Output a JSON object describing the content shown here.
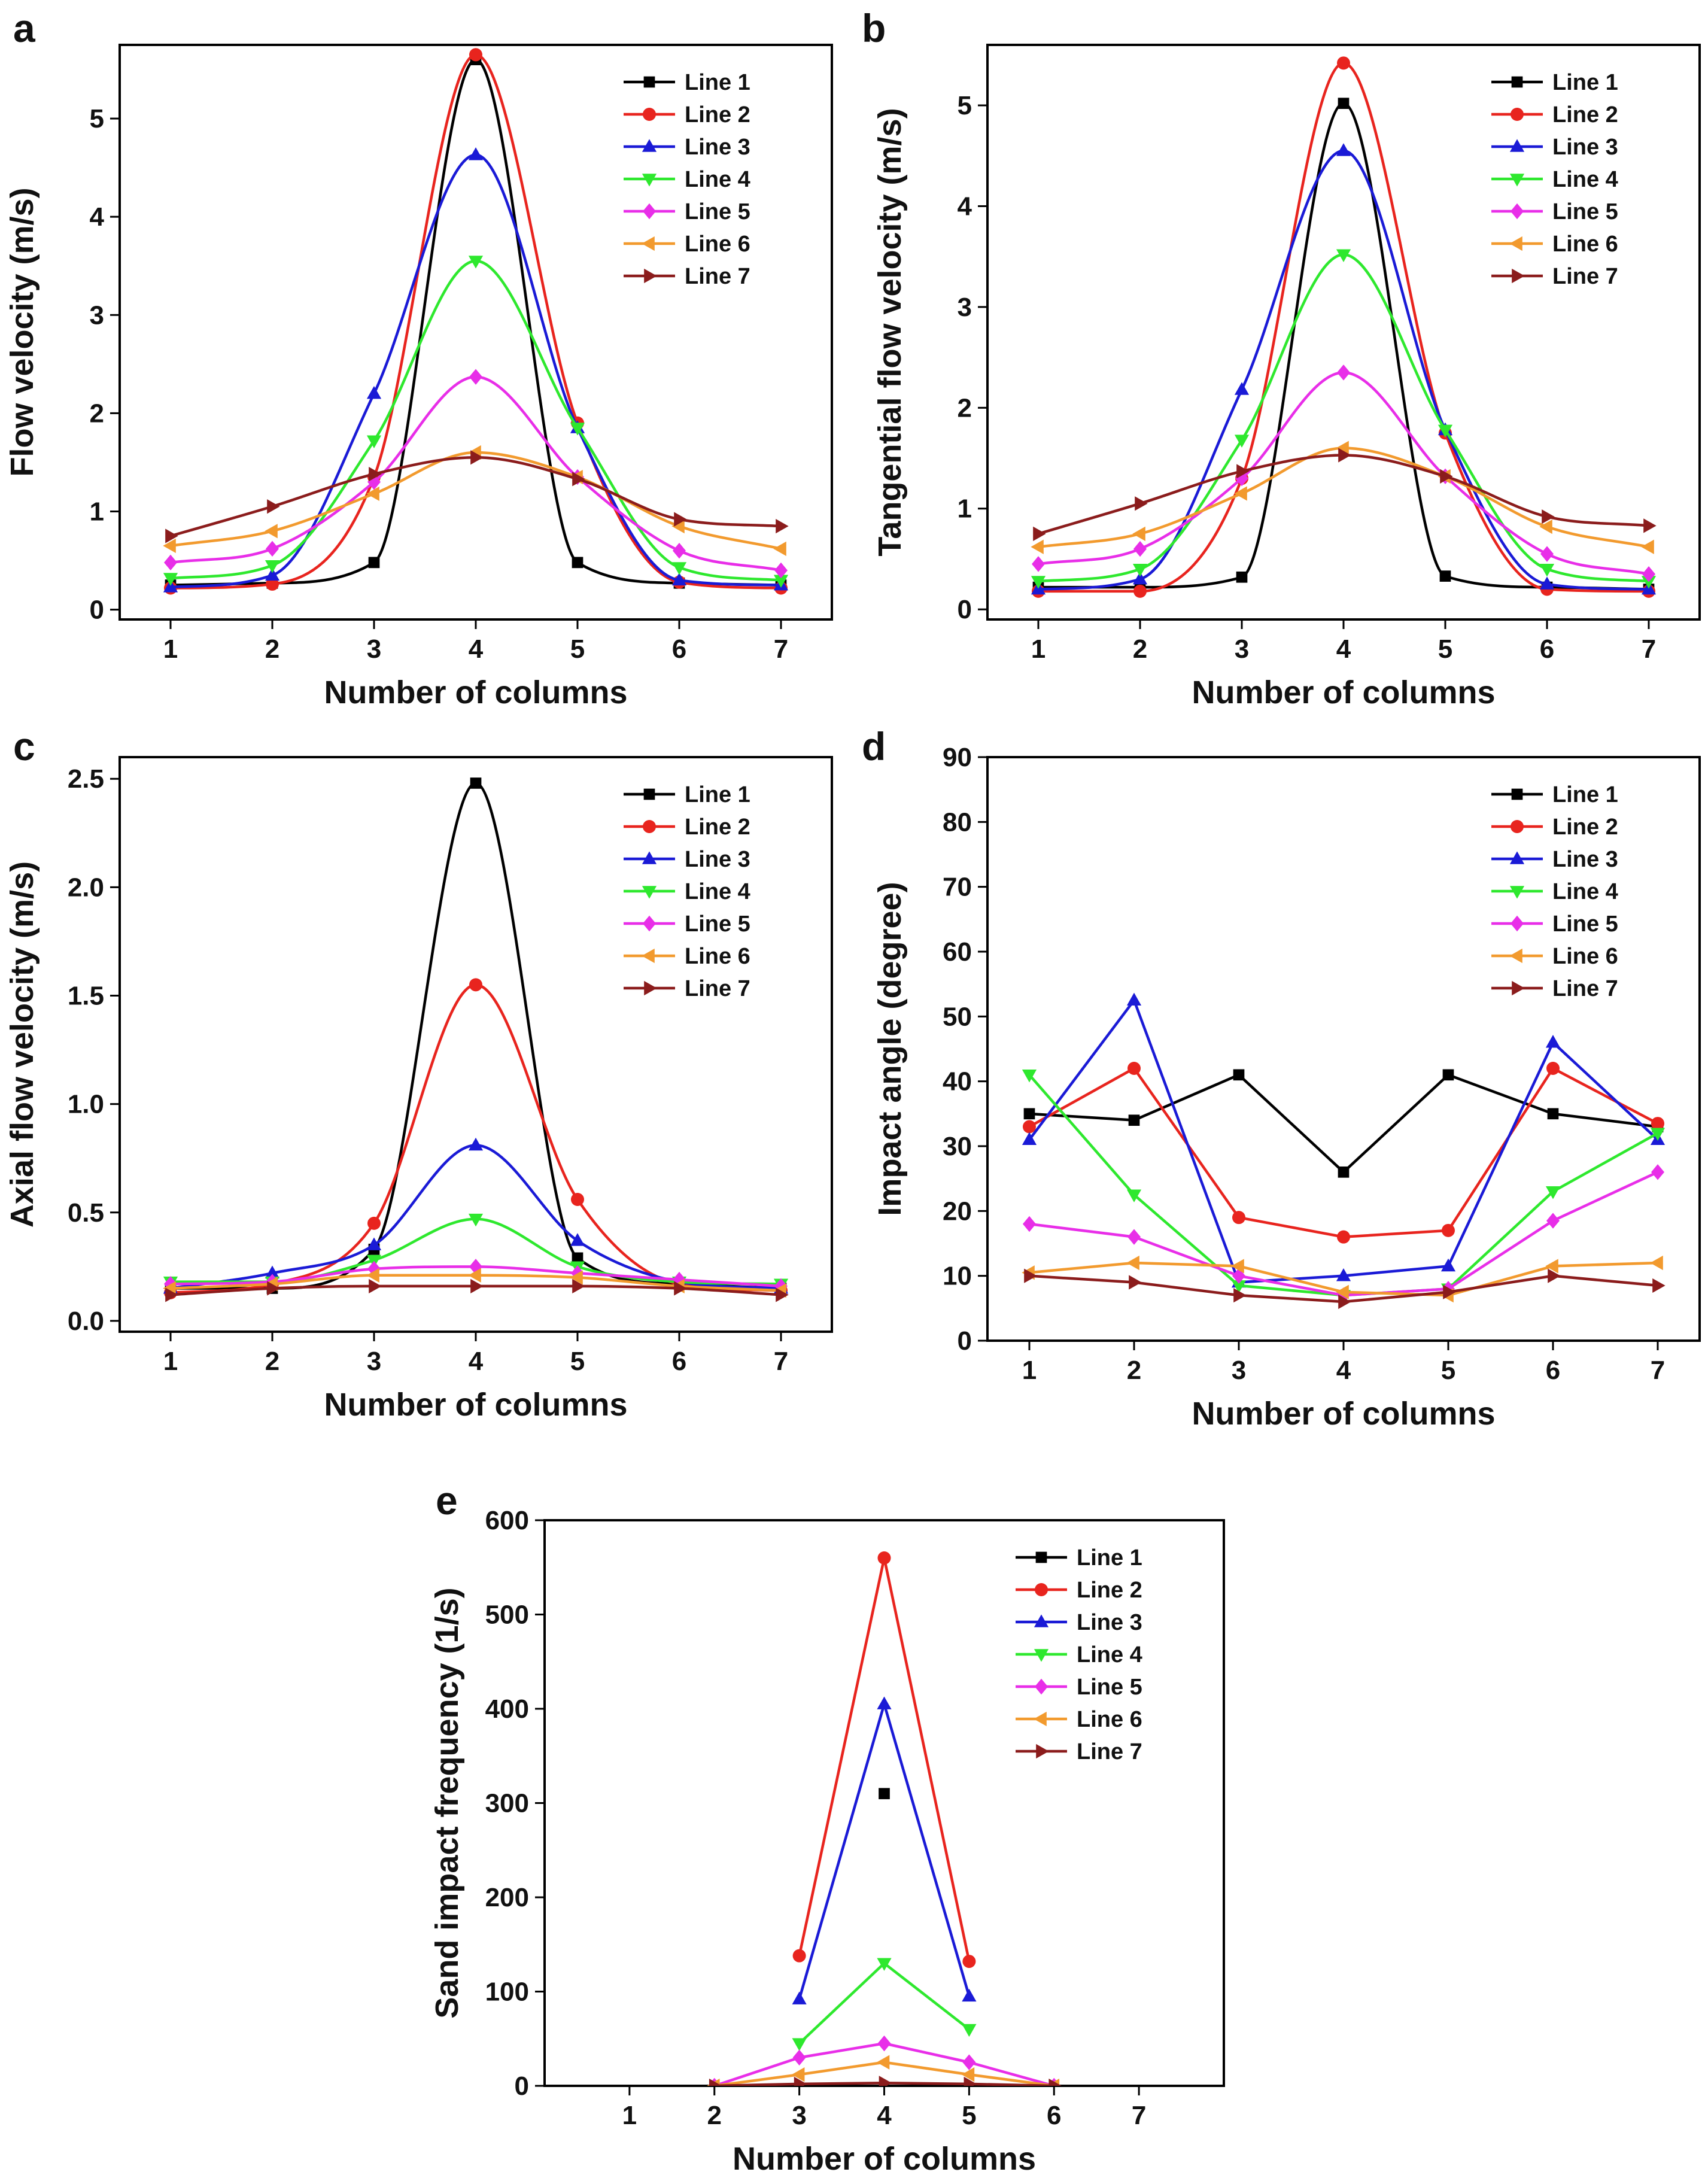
{
  "figure": {
    "panel_letters": [
      "a",
      "b",
      "c",
      "d",
      "e"
    ]
  },
  "chart_data": [
    {
      "type": "line",
      "panel": "a",
      "smooth": true,
      "title": "",
      "xlabel": "Number of columns",
      "ylabel": "Flow velocity (m/s)",
      "x": [
        1,
        2,
        3,
        4,
        5,
        6,
        7
      ],
      "xticks": [
        "1",
        "2",
        "3",
        "4",
        "5",
        "6",
        "7"
      ],
      "xlim": [
        0.5,
        7.5
      ],
      "ylim": [
        -0.1,
        5.75
      ],
      "yticks": [
        0,
        1,
        2,
        3,
        4,
        5
      ],
      "legend": "top-right",
      "series": [
        {
          "name": "Line 1",
          "color": "#000000",
          "marker": "square",
          "values": [
            0.25,
            0.27,
            0.48,
            5.6,
            0.48,
            0.27,
            0.25
          ]
        },
        {
          "name": "Line 2",
          "color": "#e8241e",
          "marker": "circle",
          "values": [
            0.22,
            0.26,
            1.35,
            5.65,
            1.9,
            0.28,
            0.22
          ]
        },
        {
          "name": "Line 3",
          "color": "#1a1ad6",
          "marker": "triangle-up",
          "values": [
            0.23,
            0.35,
            2.2,
            4.63,
            1.85,
            0.3,
            0.25
          ]
        },
        {
          "name": "Line 4",
          "color": "#2ee82e",
          "marker": "triangle-down",
          "values": [
            0.32,
            0.45,
            1.72,
            3.55,
            1.85,
            0.43,
            0.3
          ]
        },
        {
          "name": "Line 5",
          "color": "#e82ee8",
          "marker": "diamond",
          "values": [
            0.48,
            0.62,
            1.3,
            2.37,
            1.35,
            0.6,
            0.4
          ]
        },
        {
          "name": "Line 6",
          "color": "#f29a2e",
          "marker": "triangle-left",
          "values": [
            0.65,
            0.8,
            1.18,
            1.6,
            1.35,
            0.85,
            0.62
          ]
        },
        {
          "name": "Line 7",
          "color": "#8b1c1c",
          "marker": "triangle-right",
          "values": [
            0.75,
            1.05,
            1.38,
            1.55,
            1.33,
            0.92,
            0.85
          ]
        }
      ]
    },
    {
      "type": "line",
      "panel": "b",
      "smooth": true,
      "title": "",
      "xlabel": "Number of columns",
      "ylabel": "Tangential flow velocity (m/s)",
      "x": [
        1,
        2,
        3,
        4,
        5,
        6,
        7
      ],
      "xticks": [
        "1",
        "2",
        "3",
        "4",
        "5",
        "6",
        "7"
      ],
      "xlim": [
        0.5,
        7.5
      ],
      "ylim": [
        -0.1,
        5.6
      ],
      "yticks": [
        0,
        1,
        2,
        3,
        4,
        5
      ],
      "legend": "top-right",
      "series": [
        {
          "name": "Line 1",
          "color": "#000000",
          "marker": "square",
          "values": [
            0.22,
            0.22,
            0.32,
            5.02,
            0.33,
            0.22,
            0.2
          ]
        },
        {
          "name": "Line 2",
          "color": "#e8241e",
          "marker": "circle",
          "values": [
            0.18,
            0.18,
            1.3,
            5.42,
            1.75,
            0.2,
            0.18
          ]
        },
        {
          "name": "Line 3",
          "color": "#1a1ad6",
          "marker": "triangle-up",
          "values": [
            0.2,
            0.3,
            2.18,
            4.55,
            1.78,
            0.25,
            0.2
          ]
        },
        {
          "name": "Line 4",
          "color": "#2ee82e",
          "marker": "triangle-down",
          "values": [
            0.28,
            0.4,
            1.68,
            3.52,
            1.78,
            0.4,
            0.28
          ]
        },
        {
          "name": "Line 5",
          "color": "#e82ee8",
          "marker": "diamond",
          "values": [
            0.45,
            0.6,
            1.3,
            2.35,
            1.32,
            0.55,
            0.35
          ]
        },
        {
          "name": "Line 6",
          "color": "#f29a2e",
          "marker": "triangle-left",
          "values": [
            0.62,
            0.75,
            1.15,
            1.6,
            1.32,
            0.82,
            0.62
          ]
        },
        {
          "name": "Line 7",
          "color": "#8b1c1c",
          "marker": "triangle-right",
          "values": [
            0.75,
            1.05,
            1.37,
            1.53,
            1.32,
            0.92,
            0.83
          ]
        }
      ]
    },
    {
      "type": "line",
      "panel": "c",
      "smooth": true,
      "title": "",
      "xlabel": "Number of columns",
      "ylabel": "Axial flow velocity (m/s)",
      "x": [
        1,
        2,
        3,
        4,
        5,
        6,
        7
      ],
      "xticks": [
        "1",
        "2",
        "3",
        "4",
        "5",
        "6",
        "7"
      ],
      "xlim": [
        0.5,
        7.5
      ],
      "ylim": [
        -0.05,
        2.6
      ],
      "yticks": [
        0.0,
        0.5,
        1.0,
        1.5,
        2.0,
        2.5
      ],
      "ytick_labels": [
        "0.0",
        "0.5",
        "1.0",
        "1.5",
        "2.0",
        "2.5"
      ],
      "legend": "top-right",
      "series": [
        {
          "name": "Line 1",
          "color": "#000000",
          "marker": "square",
          "values": [
            0.15,
            0.15,
            0.33,
            2.48,
            0.29,
            0.17,
            0.15
          ]
        },
        {
          "name": "Line 2",
          "color": "#e8241e",
          "marker": "circle",
          "values": [
            0.13,
            0.17,
            0.45,
            1.55,
            0.56,
            0.17,
            0.14
          ]
        },
        {
          "name": "Line 3",
          "color": "#1a1ad6",
          "marker": "triangle-up",
          "values": [
            0.15,
            0.22,
            0.35,
            0.81,
            0.37,
            0.18,
            0.15
          ]
        },
        {
          "name": "Line 4",
          "color": "#2ee82e",
          "marker": "triangle-down",
          "values": [
            0.18,
            0.18,
            0.28,
            0.47,
            0.25,
            0.18,
            0.17
          ]
        },
        {
          "name": "Line 5",
          "color": "#e82ee8",
          "marker": "diamond",
          "values": [
            0.17,
            0.18,
            0.24,
            0.25,
            0.22,
            0.19,
            0.16
          ]
        },
        {
          "name": "Line 6",
          "color": "#f29a2e",
          "marker": "triangle-left",
          "values": [
            0.15,
            0.17,
            0.21,
            0.21,
            0.2,
            0.16,
            0.14
          ]
        },
        {
          "name": "Line 7",
          "color": "#8b1c1c",
          "marker": "triangle-right",
          "values": [
            0.12,
            0.15,
            0.16,
            0.16,
            0.16,
            0.15,
            0.12
          ]
        }
      ]
    },
    {
      "type": "line",
      "panel": "d",
      "smooth": false,
      "title": "",
      "xlabel": "Number of columns",
      "ylabel": "Impact angle (degree)",
      "x": [
        1,
        2,
        3,
        4,
        5,
        6,
        7
      ],
      "xticks": [
        "1",
        "2",
        "3",
        "4",
        "5",
        "6",
        "7"
      ],
      "xlim": [
        0.6,
        7.4
      ],
      "ylim": [
        0,
        90
      ],
      "yticks": [
        0,
        10,
        20,
        30,
        40,
        50,
        60,
        70,
        80,
        90
      ],
      "legend": "top-right",
      "series": [
        {
          "name": "Line 1",
          "color": "#000000",
          "marker": "square",
          "values": [
            35,
            34,
            41,
            26,
            41,
            35,
            33
          ]
        },
        {
          "name": "Line 2",
          "color": "#e8241e",
          "marker": "circle",
          "values": [
            33,
            42,
            19,
            16,
            17,
            42,
            33.5
          ]
        },
        {
          "name": "Line 3",
          "color": "#1a1ad6",
          "marker": "triangle-up",
          "values": [
            31,
            52.5,
            9,
            10,
            11.5,
            46,
            31
          ]
        },
        {
          "name": "Line 4",
          "color": "#2ee82e",
          "marker": "triangle-down",
          "values": [
            41,
            22.5,
            8.5,
            7,
            8,
            23,
            32
          ]
        },
        {
          "name": "Line 5",
          "color": "#e82ee8",
          "marker": "diamond",
          "values": [
            18,
            16,
            10,
            7,
            8,
            18.5,
            26
          ]
        },
        {
          "name": "Line 6",
          "color": "#f29a2e",
          "marker": "triangle-left",
          "values": [
            10.5,
            12,
            11.5,
            7.5,
            7,
            11.5,
            12
          ]
        },
        {
          "name": "Line 7",
          "color": "#8b1c1c",
          "marker": "triangle-right",
          "values": [
            10,
            9,
            7,
            6,
            7.5,
            10,
            8.5
          ]
        }
      ]
    },
    {
      "type": "line",
      "panel": "e",
      "smooth": false,
      "title": "",
      "xlabel": "Number of columns",
      "ylabel": "Sand impact frequency (1/s)",
      "x": [
        1,
        2,
        3,
        4,
        5,
        6,
        7
      ],
      "xticks": [
        "1",
        "2",
        "3",
        "4",
        "5",
        "6",
        "7"
      ],
      "xlim": [
        0.0,
        8.0
      ],
      "ylim": [
        0,
        600
      ],
      "yticks": [
        0,
        100,
        200,
        300,
        400,
        500,
        600
      ],
      "legend": "top-right",
      "series": [
        {
          "name": "Line 1",
          "color": "#000000",
          "marker": "square",
          "points": [
            [
              4,
              310
            ]
          ],
          "line": false
        },
        {
          "name": "Line 2",
          "color": "#e8241e",
          "marker": "circle",
          "points": [
            [
              3,
              138
            ],
            [
              4,
              560
            ],
            [
              5,
              132
            ]
          ]
        },
        {
          "name": "Line 3",
          "color": "#1a1ad6",
          "marker": "triangle-up",
          "points": [
            [
              3,
              92
            ],
            [
              4,
              405
            ],
            [
              5,
              95
            ]
          ]
        },
        {
          "name": "Line 4",
          "color": "#2ee82e",
          "marker": "triangle-down",
          "points": [
            [
              3,
              45
            ],
            [
              4,
              130
            ],
            [
              5,
              60
            ]
          ]
        },
        {
          "name": "Line 5",
          "color": "#e82ee8",
          "marker": "diamond",
          "points": [
            [
              2,
              0
            ],
            [
              3,
              30
            ],
            [
              4,
              45
            ],
            [
              5,
              25
            ],
            [
              6,
              0
            ]
          ]
        },
        {
          "name": "Line 6",
          "color": "#f29a2e",
          "marker": "triangle-left",
          "points": [
            [
              2,
              0
            ],
            [
              3,
              12
            ],
            [
              4,
              25
            ],
            [
              5,
              12
            ],
            [
              6,
              0
            ]
          ]
        },
        {
          "name": "Line 7",
          "color": "#8b1c1c",
          "marker": "triangle-right",
          "points": [
            [
              2,
              0
            ],
            [
              3,
              2
            ],
            [
              4,
              3
            ],
            [
              5,
              2
            ],
            [
              6,
              0
            ]
          ]
        }
      ]
    }
  ]
}
